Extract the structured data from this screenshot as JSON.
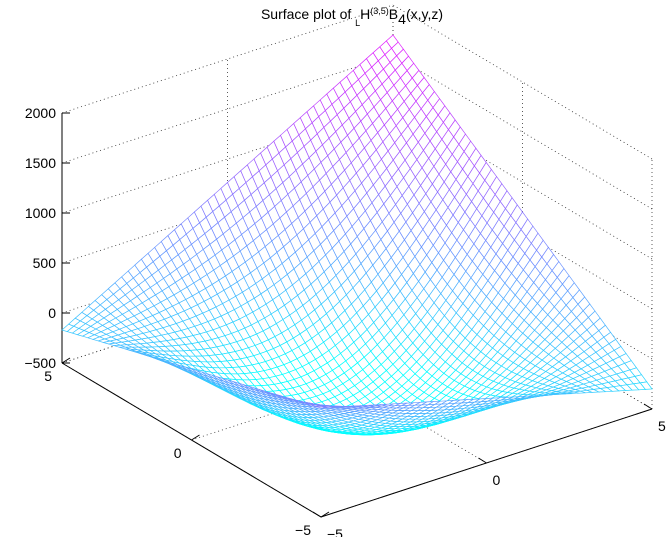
{
  "chart_data": {
    "type": "surface",
    "title": {
      "prefix": "Surface plot of ",
      "sub": "L",
      "main": "H",
      "sup": "(3,5)",
      "func": "B",
      "func_sub": "4",
      "args": "(x,y,z)"
    },
    "xlabel": "",
    "ylabel": "",
    "zlabel": "",
    "xlim": [
      -5,
      5
    ],
    "ylim": [
      -5,
      5
    ],
    "zlim": [
      -500,
      2000
    ],
    "x_ticks": [
      "-5",
      "0",
      "5"
    ],
    "y_ticks": [
      "-5",
      "0",
      "5"
    ],
    "z_ticks": [
      "-500",
      "0",
      "500",
      "1000",
      "1500",
      "2000"
    ],
    "grid": true,
    "mesh": {
      "rows": 50,
      "cols": 50
    },
    "corner_values": [
      {
        "x": -5,
        "y": 5,
        "z": -170
      },
      {
        "x": 5,
        "y": 5,
        "z": 1700
      },
      {
        "x": 5,
        "y": -5,
        "z": -300
      },
      {
        "x": -5,
        "y": -5,
        "z": 590
      }
    ],
    "colormap": [
      "#00ffff",
      "#ff00ff"
    ]
  }
}
